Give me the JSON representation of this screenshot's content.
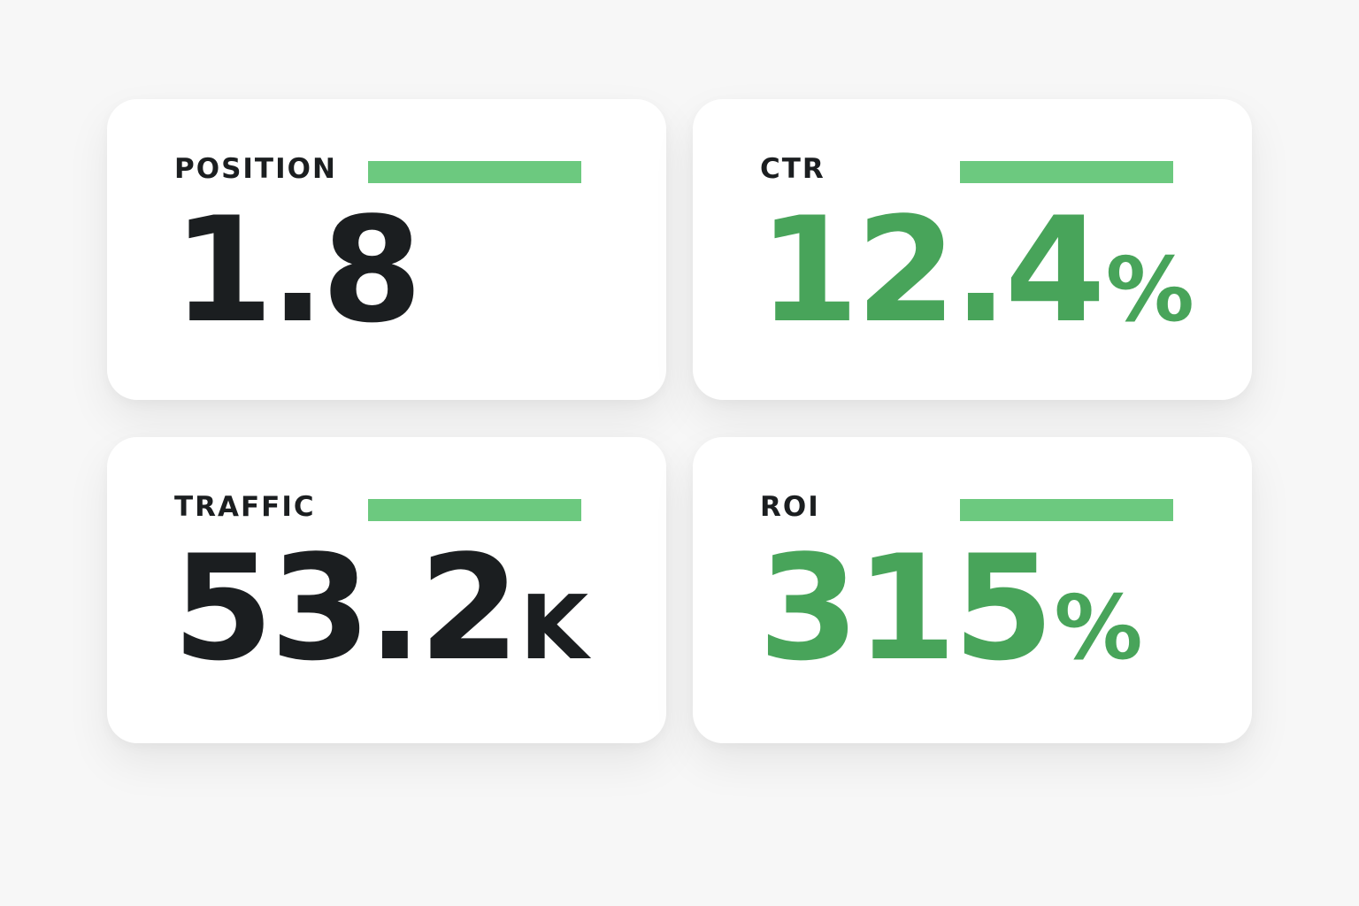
{
  "colors": {
    "background": "#f7f7f7",
    "card": "#ffffff",
    "text_dark": "#1b1e20",
    "accent_green": "#48a45a",
    "bar_green": "#6cc97f"
  },
  "metrics": [
    {
      "label": "POSITION",
      "value": "1.8",
      "unit": "",
      "value_color": "dark"
    },
    {
      "label": "CTR",
      "value": "12.4",
      "unit": "%",
      "value_color": "green"
    },
    {
      "label": "TRAFFIC",
      "value": "53.2",
      "unit": "K",
      "value_color": "dark"
    },
    {
      "label": "ROI",
      "value": "315",
      "unit": "%",
      "value_color": "green"
    }
  ]
}
